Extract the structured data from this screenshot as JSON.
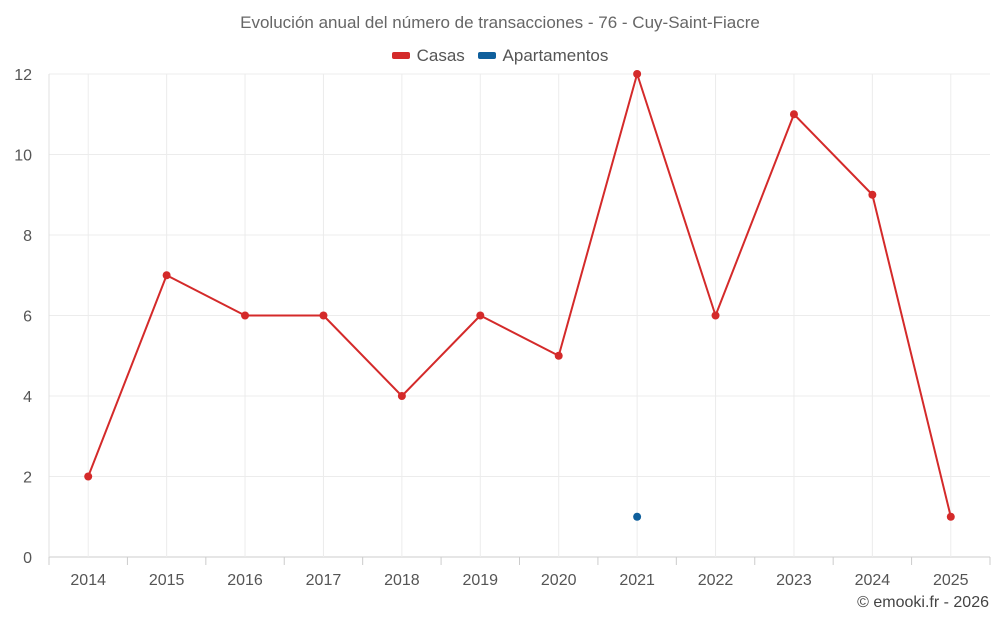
{
  "chart_data": {
    "type": "line",
    "title": "Evolución anual del número de transacciones - 76 - Cuy-Saint-Fiacre",
    "categories": [
      "2014",
      "2015",
      "2016",
      "2017",
      "2018",
      "2019",
      "2020",
      "2021",
      "2022",
      "2023",
      "2024",
      "2025"
    ],
    "series": [
      {
        "name": "Casas",
        "color": "#d42a2a",
        "values": [
          2,
          7,
          6,
          6,
          4,
          6,
          5,
          12,
          6,
          11,
          9,
          1
        ]
      },
      {
        "name": "Apartamentos",
        "color": "#0f5f9c",
        "values": [
          null,
          null,
          null,
          null,
          null,
          null,
          null,
          1,
          null,
          null,
          null,
          null
        ]
      }
    ],
    "ylim": [
      0,
      12
    ],
    "yticks": [
      0,
      2,
      4,
      6,
      8,
      10,
      12
    ],
    "xlabel": "",
    "ylabel": "",
    "grid": true,
    "legend_position": "top-center"
  },
  "credit": "© emooki.fr - 2026"
}
